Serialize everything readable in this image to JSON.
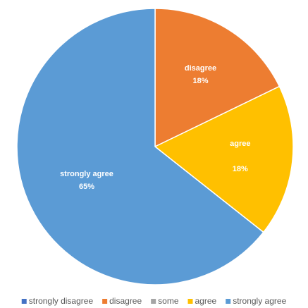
{
  "chart_data": {
    "type": "pie",
    "title": "",
    "categories": [
      "strongly disagree",
      "disagree",
      "some",
      "agree",
      "strongly agree"
    ],
    "values": [
      0,
      18,
      0,
      18,
      65
    ],
    "data_labels": [
      "",
      "18%",
      "",
      "18%",
      "65%"
    ],
    "colors": [
      "#4472C4",
      "#ED7D31",
      "#A5A5A5",
      "#FFC000",
      "#5B9BD5"
    ],
    "legend": {
      "position": "bottom",
      "entries": [
        "strongly disagree",
        "disagree",
        "some",
        "agree",
        "strongly agree"
      ]
    }
  }
}
